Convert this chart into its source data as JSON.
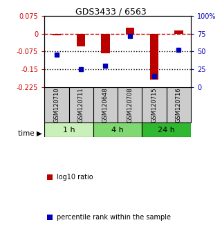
{
  "title": "GDS3433 / 6563",
  "samples": [
    "GSM120710",
    "GSM120711",
    "GSM120648",
    "GSM120708",
    "GSM120715",
    "GSM120716"
  ],
  "log10_ratio": [
    -0.008,
    -0.052,
    -0.082,
    0.025,
    -0.192,
    0.013
  ],
  "percentile_rank": [
    46,
    25,
    30,
    72,
    15,
    52
  ],
  "ylim_left": [
    -0.225,
    0.075
  ],
  "ylim_right": [
    0,
    100
  ],
  "yticks_left": [
    0.075,
    0,
    -0.075,
    -0.15,
    -0.225
  ],
  "yticks_right": [
    100,
    75,
    50,
    25,
    0
  ],
  "time_groups": [
    {
      "label": "1 h",
      "indices": [
        0,
        1
      ],
      "color": "#c8f0b8"
    },
    {
      "label": "4 h",
      "indices": [
        2,
        3
      ],
      "color": "#80d870"
    },
    {
      "label": "24 h",
      "indices": [
        4,
        5
      ],
      "color": "#30b830"
    }
  ],
  "bar_color": "#bb0000",
  "dot_color": "#0000bb",
  "dashed_line_color": "#cc0000",
  "dotted_line_color": "#000000",
  "legend_items": [
    "log10 ratio",
    "percentile rank within the sample"
  ],
  "background_plot": "#ffffff",
  "background_sample": "#cccccc",
  "title_fontsize": 9,
  "tick_fontsize": 7,
  "sample_fontsize": 6,
  "legend_fontsize": 7
}
